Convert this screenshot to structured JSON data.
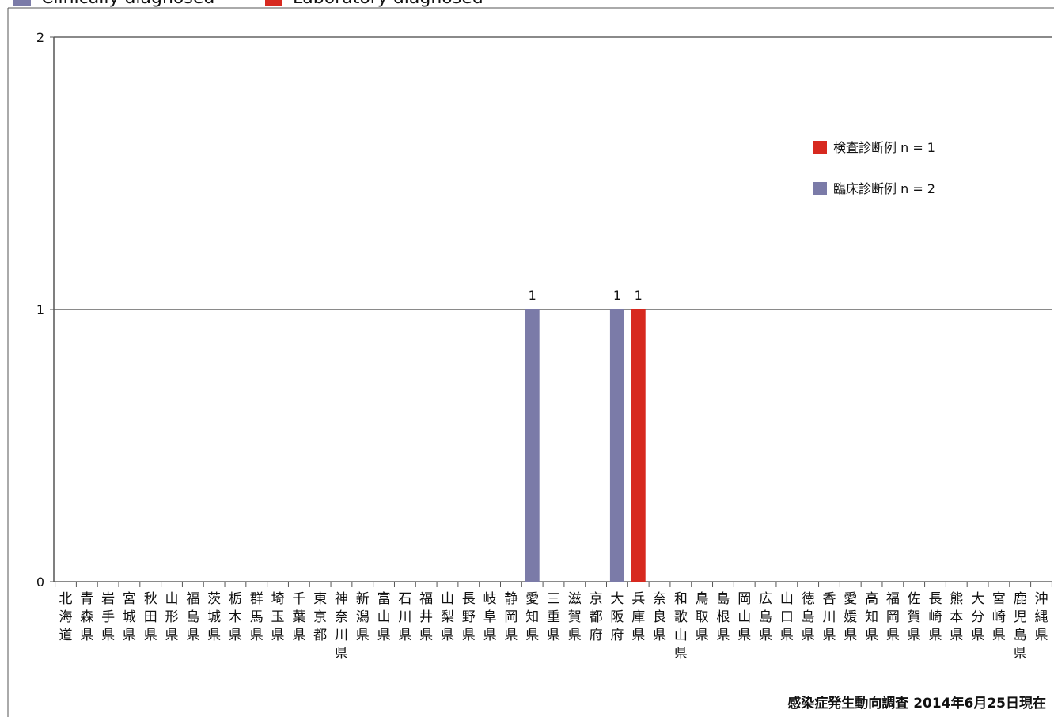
{
  "chart_data": {
    "type": "bar",
    "stacked": true,
    "ylim": [
      0,
      2
    ],
    "yticks": [
      "0",
      "1",
      "2"
    ],
    "grid": true,
    "categories": [
      "北海道",
      "青森県",
      "岩手県",
      "宮城県",
      "秋田県",
      "山形県",
      "福島県",
      "茨城県",
      "栃木県",
      "群馬県",
      "埼玉県",
      "千葉県",
      "東京都",
      "神奈川県",
      "新潟県",
      "富山県",
      "石川県",
      "福井県",
      "山梨県",
      "長野県",
      "岐阜県",
      "静岡県",
      "愛知県",
      "三重県",
      "滋賀県",
      "京都府",
      "大阪府",
      "兵庫県",
      "奈良県",
      "和歌山県",
      "鳥取県",
      "島根県",
      "岡山県",
      "広島県",
      "山口県",
      "徳島県",
      "香川県",
      "愛媛県",
      "高知県",
      "福岡県",
      "佐賀県",
      "長崎県",
      "熊本県",
      "大分県",
      "宮崎県",
      "鹿児島県",
      "沖縄県"
    ],
    "series": [
      {
        "name": "検査診断例 n = 1",
        "color": "#d7291f",
        "values": [
          0,
          0,
          0,
          0,
          0,
          0,
          0,
          0,
          0,
          0,
          0,
          0,
          0,
          0,
          0,
          0,
          0,
          0,
          0,
          0,
          0,
          0,
          0,
          0,
          0,
          0,
          0,
          1,
          0,
          0,
          0,
          0,
          0,
          0,
          0,
          0,
          0,
          0,
          0,
          0,
          0,
          0,
          0,
          0,
          0,
          0,
          0
        ]
      },
      {
        "name": "臨床診断例 n = 2",
        "color": "#7b7ba8",
        "values": [
          0,
          0,
          0,
          0,
          0,
          0,
          0,
          0,
          0,
          0,
          0,
          0,
          0,
          0,
          0,
          0,
          0,
          0,
          0,
          0,
          0,
          0,
          1,
          0,
          0,
          0,
          1,
          0,
          0,
          0,
          0,
          0,
          0,
          0,
          0,
          0,
          0,
          0,
          0,
          0,
          0,
          0,
          0,
          0,
          0,
          0,
          0
        ]
      }
    ],
    "legend_position": "right",
    "top_legend": [
      {
        "label": "Clinically diagnosed",
        "color": "#7b7ba8"
      },
      {
        "label": "Laboratory diagnosed",
        "color": "#d7291f"
      }
    ],
    "footnote": "感染症発生動向調査 2014年6月25日現在"
  }
}
